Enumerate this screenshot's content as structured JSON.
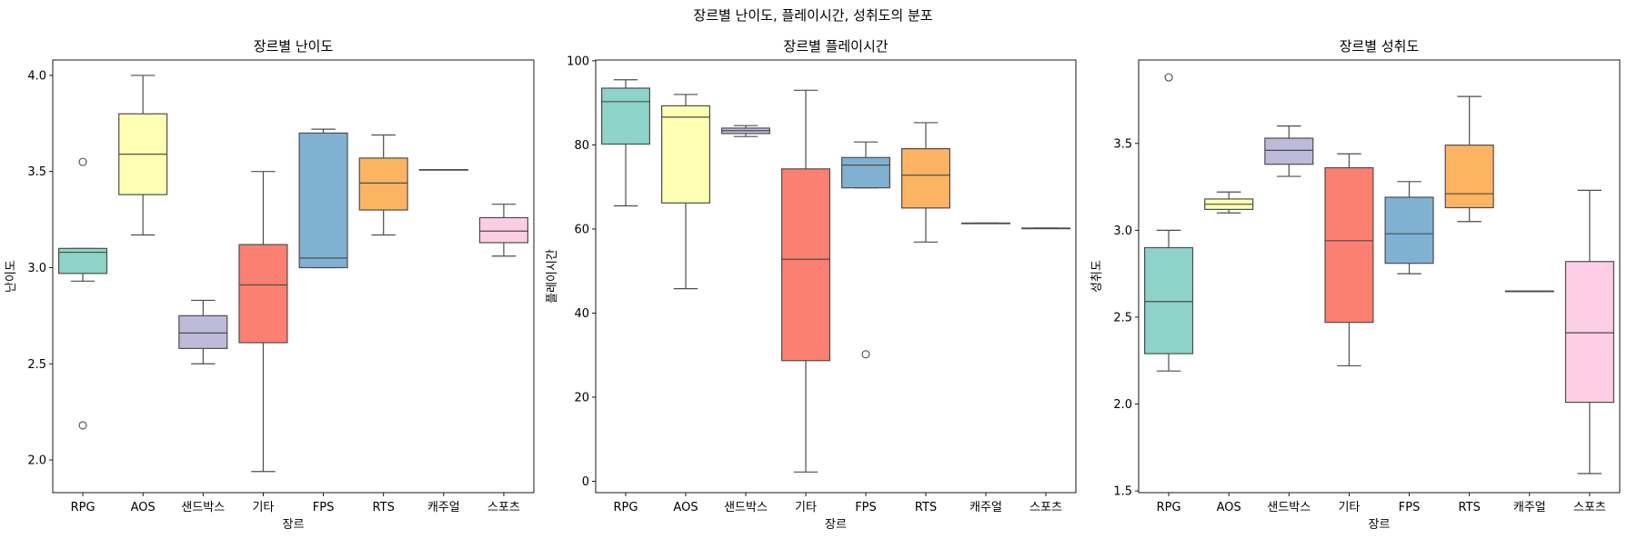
{
  "suptitle": "장르별 난이도, 플레이시간, 성취도의 분포",
  "palette": [
    "#8dd3c7",
    "#ffffb3",
    "#bebada",
    "#fb8072",
    "#80b1d3",
    "#fdb462",
    "#fccde5",
    "#fccde5"
  ],
  "chart_data": [
    {
      "type": "box",
      "title": "장르별 난이도",
      "xlabel": "장르",
      "ylabel": "난이도",
      "categories": [
        "RPG",
        "AOS",
        "샌드박스",
        "기타",
        "FPS",
        "RTS",
        "캐주얼",
        "스포츠"
      ],
      "ylim": [
        1.83,
        4.08
      ],
      "yticks": [
        2.0,
        2.5,
        3.0,
        3.5,
        4.0
      ],
      "ytick_labels": [
        "2.0",
        "2.5",
        "3.0",
        "3.5",
        "4.0"
      ],
      "boxes": [
        {
          "category": "RPG",
          "whisker_low": 2.93,
          "q1": 2.97,
          "median": 3.08,
          "q3": 3.1,
          "whisker_high": 3.1,
          "outliers": [
            3.55,
            2.18
          ]
        },
        {
          "category": "AOS",
          "whisker_low": 3.17,
          "q1": 3.38,
          "median": 3.59,
          "q3": 3.8,
          "whisker_high": 4.0,
          "outliers": []
        },
        {
          "category": "샌드박스",
          "whisker_low": 2.5,
          "q1": 2.58,
          "median": 2.66,
          "q3": 2.75,
          "whisker_high": 2.83,
          "outliers": []
        },
        {
          "category": "기타",
          "whisker_low": 1.94,
          "q1": 2.61,
          "median": 2.91,
          "q3": 3.12,
          "whisker_high": 3.5,
          "outliers": []
        },
        {
          "category": "FPS",
          "whisker_low": 3.0,
          "q1": 3.0,
          "median": 3.05,
          "q3": 3.7,
          "whisker_high": 3.72,
          "outliers": []
        },
        {
          "category": "RTS",
          "whisker_low": 3.17,
          "q1": 3.3,
          "median": 3.44,
          "q3": 3.57,
          "whisker_high": 3.69,
          "outliers": []
        },
        {
          "category": "캐주얼",
          "whisker_low": 3.51,
          "q1": 3.51,
          "median": 3.51,
          "q3": 3.51,
          "whisker_high": 3.51,
          "outliers": []
        },
        {
          "category": "스포츠",
          "whisker_low": 3.06,
          "q1": 3.13,
          "median": 3.19,
          "q3": 3.26,
          "whisker_high": 3.33,
          "outliers": []
        }
      ]
    },
    {
      "type": "box",
      "title": "장르별 플레이시간",
      "xlabel": "장르",
      "ylabel": "플레이시간",
      "categories": [
        "RPG",
        "AOS",
        "샌드박스",
        "기타",
        "FPS",
        "RTS",
        "캐주얼",
        "스포츠"
      ],
      "ylim": [
        -2.7,
        100.2
      ],
      "yticks": [
        0,
        20,
        40,
        60,
        80,
        100
      ],
      "ytick_labels": [
        "0",
        "20",
        "40",
        "60",
        "80",
        "100"
      ],
      "boxes": [
        {
          "category": "RPG",
          "whisker_low": 65.5,
          "q1": 80.2,
          "median": 90.3,
          "q3": 93.5,
          "whisker_high": 95.5,
          "outliers": []
        },
        {
          "category": "AOS",
          "whisker_low": 45.8,
          "q1": 66.2,
          "median": 86.6,
          "q3": 89.3,
          "whisker_high": 92.0,
          "outliers": []
        },
        {
          "category": "샌드박스",
          "whisker_low": 82.0,
          "q1": 82.7,
          "median": 83.4,
          "q3": 84.0,
          "whisker_high": 84.6,
          "outliers": []
        },
        {
          "category": "기타",
          "whisker_low": 2.2,
          "q1": 28.7,
          "median": 52.8,
          "q3": 74.3,
          "whisker_high": 93.0,
          "outliers": []
        },
        {
          "category": "FPS",
          "whisker_low": 69.8,
          "q1": 69.8,
          "median": 75.2,
          "q3": 77.0,
          "whisker_high": 80.7,
          "outliers": [
            30.2
          ]
        },
        {
          "category": "RTS",
          "whisker_low": 56.9,
          "q1": 65.0,
          "median": 72.8,
          "q3": 79.1,
          "whisker_high": 85.3,
          "outliers": []
        },
        {
          "category": "캐주얼",
          "whisker_low": 61.4,
          "q1": 61.4,
          "median": 61.4,
          "q3": 61.4,
          "whisker_high": 61.4,
          "outliers": []
        },
        {
          "category": "스포츠",
          "whisker_low": 60.2,
          "q1": 60.2,
          "median": 60.2,
          "q3": 60.2,
          "whisker_high": 60.2,
          "outliers": []
        }
      ]
    },
    {
      "type": "box",
      "title": "장르별 성취도",
      "xlabel": "장르",
      "ylabel": "성취도",
      "categories": [
        "RPG",
        "AOS",
        "샌드박스",
        "기타",
        "FPS",
        "RTS",
        "캐주얼",
        "스포츠"
      ],
      "ylim": [
        1.49,
        3.98
      ],
      "yticks": [
        1.5,
        2.0,
        2.5,
        3.0,
        3.5
      ],
      "ytick_labels": [
        "1.5",
        "2.0",
        "2.5",
        "3.0",
        "3.5"
      ],
      "boxes": [
        {
          "category": "RPG",
          "whisker_low": 2.19,
          "q1": 2.29,
          "median": 2.59,
          "q3": 2.9,
          "whisker_high": 3.0,
          "outliers": [
            3.88
          ]
        },
        {
          "category": "AOS",
          "whisker_low": 3.1,
          "q1": 3.12,
          "median": 3.15,
          "q3": 3.18,
          "whisker_high": 3.22,
          "outliers": []
        },
        {
          "category": "샌드박스",
          "whisker_low": 3.31,
          "q1": 3.38,
          "median": 3.46,
          "q3": 3.53,
          "whisker_high": 3.6,
          "outliers": []
        },
        {
          "category": "기타",
          "whisker_low": 2.22,
          "q1": 2.47,
          "median": 2.94,
          "q3": 3.36,
          "whisker_high": 3.44,
          "outliers": []
        },
        {
          "category": "FPS",
          "whisker_low": 2.75,
          "q1": 2.81,
          "median": 2.98,
          "q3": 3.19,
          "whisker_high": 3.28,
          "outliers": []
        },
        {
          "category": "RTS",
          "whisker_low": 3.05,
          "q1": 3.13,
          "median": 3.21,
          "q3": 3.49,
          "whisker_high": 3.77,
          "outliers": []
        },
        {
          "category": "캐주얼",
          "whisker_low": 2.65,
          "q1": 2.65,
          "median": 2.65,
          "q3": 2.65,
          "whisker_high": 2.65,
          "outliers": []
        },
        {
          "category": "스포츠",
          "whisker_low": 1.6,
          "q1": 2.01,
          "median": 2.41,
          "q3": 2.82,
          "whisker_high": 3.23,
          "outliers": []
        }
      ]
    }
  ]
}
